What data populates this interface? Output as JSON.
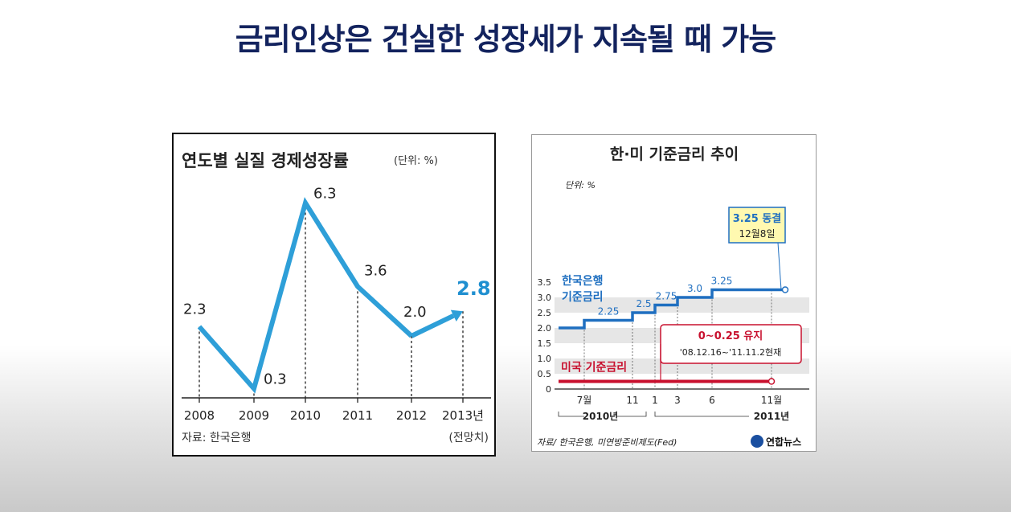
{
  "slide": {
    "title": "금리인상은 건실한 성장세가 지속될 때 가능"
  },
  "chart_data": [
    {
      "type": "line",
      "title": "연도별 실질 경제성장률",
      "unit_label": "(단위: %)",
      "categories": [
        "2008",
        "2009",
        "2010",
        "2011",
        "2012",
        "2013년"
      ],
      "values": [
        2.3,
        0.3,
        6.3,
        3.6,
        2.0,
        2.8
      ],
      "value_labels": [
        "2.3",
        "0.3",
        "6.3",
        "3.6",
        "2.0",
        "2.8"
      ],
      "ylim": [
        0,
        7
      ],
      "source": "자료: 한국은행",
      "note": "(전망치)",
      "colors": {
        "line": "#2e9fd8",
        "forecast_label": "#1f8fd0",
        "text": "#222222"
      }
    },
    {
      "type": "line",
      "title": "한·미 기준금리 추이",
      "unit_label": "단위: %",
      "yticks": [
        "3.5",
        "3.0",
        "2.5",
        "2.0",
        "1.5",
        "1.0",
        "0.5",
        "0"
      ],
      "ylim": [
        0,
        3.5
      ],
      "x_month_labels": [
        "7월",
        "11",
        "1",
        "3",
        "6",
        "11월"
      ],
      "x_year_labels": [
        "2010년",
        "2011년"
      ],
      "series": [
        {
          "name": "한국은행 기준금리",
          "name_lines": [
            "한국은행",
            "기준금리"
          ],
          "color": "#1f6fc0",
          "steps": [
            [
              "2010-06",
              2.0
            ],
            [
              "2010-07",
              2.25
            ],
            [
              "2010-11",
              2.5
            ],
            [
              "2011-01",
              2.75
            ],
            [
              "2011-03",
              3.0
            ],
            [
              "2011-06",
              3.25
            ],
            [
              "2011-12",
              3.25
            ]
          ],
          "step_labels": [
            "2.25",
            "2.5",
            "2.75",
            "3.0",
            "3.25"
          ]
        },
        {
          "name": "미국 기준금리",
          "color": "#c8102e",
          "steps": [
            [
              "2010-06",
              0.25
            ],
            [
              "2011-12",
              0.25
            ]
          ]
        }
      ],
      "callouts": {
        "korea": {
          "line1": "3.25 동결",
          "line2": "12월8일"
        },
        "us": {
          "line1": "0~0.25 유지",
          "line2": "'08.12.16~'11.11.2현재"
        }
      },
      "source": "자료/ 한국은행, 미연방준비제도(Fed)",
      "logo_text": "연합뉴스"
    }
  ]
}
